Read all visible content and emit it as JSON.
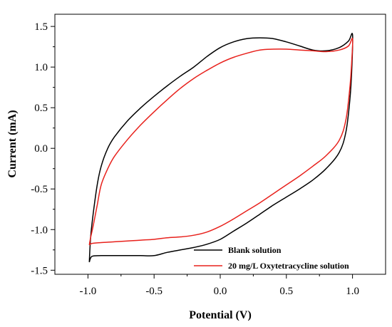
{
  "chart_data": {
    "type": "line",
    "title": "",
    "xlabel": "Potential (V)",
    "ylabel": "Current (mA)",
    "xlim": [
      -1.25,
      1.25
    ],
    "ylim": [
      -1.55,
      1.65
    ],
    "x_ticks": [
      -1.0,
      -0.5,
      0.0,
      0.5,
      1.0
    ],
    "x_tick_labels": [
      "-1.0",
      "-0.5",
      "0.0",
      "0.5",
      "1.0"
    ],
    "y_ticks": [
      -1.5,
      -1.0,
      -0.5,
      0.0,
      0.5,
      1.0,
      1.5
    ],
    "y_tick_labels": [
      "-1.5",
      "-1.0",
      "-0.5",
      "0.0",
      "0.5",
      "1.0",
      "1.5"
    ],
    "grid": false,
    "legend_position": "bottom-right",
    "series": [
      {
        "name": "Blank solution",
        "color": "#000000",
        "points": [
          [
            -0.99,
            -1.4
          ],
          [
            -0.97,
            -1.33
          ],
          [
            -0.9,
            -1.32
          ],
          [
            -0.8,
            -1.32
          ],
          [
            -0.7,
            -1.32
          ],
          [
            -0.6,
            -1.32
          ],
          [
            -0.5,
            -1.32
          ],
          [
            -0.4,
            -1.28
          ],
          [
            -0.3,
            -1.25
          ],
          [
            -0.2,
            -1.22
          ],
          [
            -0.1,
            -1.18
          ],
          [
            0.0,
            -1.12
          ],
          [
            0.1,
            -1.02
          ],
          [
            0.2,
            -0.92
          ],
          [
            0.3,
            -0.81
          ],
          [
            0.4,
            -0.7
          ],
          [
            0.5,
            -0.6
          ],
          [
            0.6,
            -0.5
          ],
          [
            0.7,
            -0.39
          ],
          [
            0.8,
            -0.25
          ],
          [
            0.9,
            -0.05
          ],
          [
            0.95,
            0.2
          ],
          [
            0.98,
            0.6
          ],
          [
            0.995,
            1.0
          ],
          [
            1.0,
            1.4
          ],
          [
            0.97,
            1.32
          ],
          [
            0.9,
            1.24
          ],
          [
            0.8,
            1.2
          ],
          [
            0.7,
            1.21
          ],
          [
            0.6,
            1.26
          ],
          [
            0.5,
            1.31
          ],
          [
            0.4,
            1.35
          ],
          [
            0.3,
            1.36
          ],
          [
            0.2,
            1.35
          ],
          [
            0.1,
            1.31
          ],
          [
            0.0,
            1.24
          ],
          [
            -0.1,
            1.13
          ],
          [
            -0.2,
            1.0
          ],
          [
            -0.3,
            0.89
          ],
          [
            -0.4,
            0.77
          ],
          [
            -0.5,
            0.64
          ],
          [
            -0.6,
            0.5
          ],
          [
            -0.7,
            0.34
          ],
          [
            -0.8,
            0.14
          ],
          [
            -0.85,
            0.0
          ],
          [
            -0.9,
            -0.22
          ],
          [
            -0.93,
            -0.45
          ],
          [
            -0.96,
            -0.8
          ],
          [
            -0.98,
            -1.1
          ],
          [
            -0.99,
            -1.4
          ]
        ]
      },
      {
        "name": "20 mg/L Oxytetracycline solution",
        "color": "#e8211c",
        "points": [
          [
            -0.99,
            -1.19
          ],
          [
            -0.97,
            -1.17
          ],
          [
            -0.9,
            -1.16
          ],
          [
            -0.8,
            -1.15
          ],
          [
            -0.7,
            -1.14
          ],
          [
            -0.6,
            -1.13
          ],
          [
            -0.5,
            -1.12
          ],
          [
            -0.4,
            -1.1
          ],
          [
            -0.3,
            -1.09
          ],
          [
            -0.2,
            -1.07
          ],
          [
            -0.1,
            -1.03
          ],
          [
            0.0,
            -0.96
          ],
          [
            0.1,
            -0.87
          ],
          [
            0.2,
            -0.77
          ],
          [
            0.3,
            -0.67
          ],
          [
            0.4,
            -0.56
          ],
          [
            0.5,
            -0.45
          ],
          [
            0.6,
            -0.34
          ],
          [
            0.7,
            -0.22
          ],
          [
            0.8,
            -0.09
          ],
          [
            0.9,
            0.1
          ],
          [
            0.95,
            0.35
          ],
          [
            0.98,
            0.75
          ],
          [
            0.995,
            1.1
          ],
          [
            1.0,
            1.35
          ],
          [
            0.97,
            1.26
          ],
          [
            0.9,
            1.21
          ],
          [
            0.8,
            1.19
          ],
          [
            0.7,
            1.2
          ],
          [
            0.6,
            1.21
          ],
          [
            0.5,
            1.22
          ],
          [
            0.4,
            1.22
          ],
          [
            0.3,
            1.21
          ],
          [
            0.2,
            1.17
          ],
          [
            0.1,
            1.12
          ],
          [
            0.0,
            1.05
          ],
          [
            -0.1,
            0.96
          ],
          [
            -0.2,
            0.86
          ],
          [
            -0.3,
            0.74
          ],
          [
            -0.4,
            0.6
          ],
          [
            -0.5,
            0.45
          ],
          [
            -0.6,
            0.29
          ],
          [
            -0.7,
            0.11
          ],
          [
            -0.8,
            -0.1
          ],
          [
            -0.85,
            -0.25
          ],
          [
            -0.9,
            -0.45
          ],
          [
            -0.93,
            -0.7
          ],
          [
            -0.96,
            -0.95
          ],
          [
            -0.98,
            -1.1
          ],
          [
            -0.99,
            -1.19
          ]
        ]
      }
    ]
  }
}
